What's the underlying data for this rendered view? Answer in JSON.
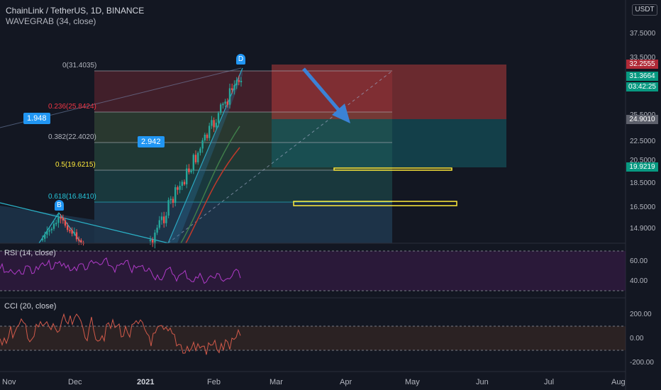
{
  "header": {
    "title": "ChainLink / TetherUS, 1D, BINANCE",
    "indicator": "WAVEGRAB (34, close)"
  },
  "currency": "USDT",
  "price_axis": {
    "ticks": [
      "37.5000",
      "33.5000",
      "28.5000",
      "25.5000",
      "22.5000",
      "20.5000",
      "18.5000",
      "16.5000",
      "14.9000"
    ],
    "badges": [
      {
        "text": "32.2555",
        "color": "#b02a37"
      },
      {
        "text": "31.3664",
        "color": "#089981"
      },
      {
        "text": "03:42:25",
        "color": "#089981"
      },
      {
        "text": "24.9010",
        "color": "#5d606b"
      },
      {
        "text": "19.9219",
        "color": "#089981"
      }
    ]
  },
  "fibonacci": [
    {
      "ratio": "0",
      "price": "31.4035",
      "text": "0(31.4035)",
      "color": "#b2b5be"
    },
    {
      "ratio": "0.236",
      "price": "25.8424",
      "text": "0.236(25.8424)",
      "color": "#f23645"
    },
    {
      "ratio": "0.382",
      "price": "22.4020",
      "text": "0.382(22.4020)",
      "color": "#b2b5be"
    },
    {
      "ratio": "0.5",
      "price": "19.6215",
      "text": "0.5(19.6215)",
      "color": "#ffeb3b"
    },
    {
      "ratio": "0.618",
      "price": "16.8410",
      "text": "0.618(16.8410)",
      "color": "#26c6da"
    }
  ],
  "wave_labels": {
    "ratio_left": "1.948",
    "ratio_mid": "2.942",
    "wave_top": "D",
    "wave_low": "B"
  },
  "panes": {
    "rsi": {
      "label": "RSI (14, close)",
      "ticks": [
        "60.00",
        "40.00"
      ]
    },
    "cci": {
      "label": "CCI (20, close)",
      "ticks": [
        "200.00",
        "0.00",
        "-200.00"
      ]
    }
  },
  "time_axis": [
    "Nov",
    "Dec",
    "2021",
    "Feb",
    "Mar",
    "Apr",
    "May",
    "Jun",
    "Jul",
    "Aug"
  ],
  "colors": {
    "background": "#131722",
    "up": "#26a69a",
    "down": "#ef5350",
    "accent": "#2196f3",
    "rsi": "#9c27b0",
    "cci": "#d35a4a",
    "highlight": "#ffeb3b"
  }
}
